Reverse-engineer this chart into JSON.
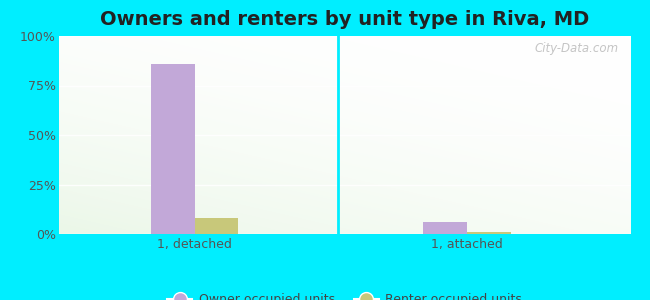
{
  "title": "Owners and renters by unit type in Riva, MD",
  "groups": [
    "1, detached",
    "1, attached"
  ],
  "series": [
    {
      "label": "Owner occupied units",
      "values": [
        86,
        6
      ],
      "color": "#c2a8d8"
    },
    {
      "label": "Renter occupied units",
      "values": [
        8,
        1
      ],
      "color": "#c8c87a"
    }
  ],
  "ylim": [
    0,
    100
  ],
  "yticks": [
    0,
    25,
    50,
    75,
    100
  ],
  "ytick_labels": [
    "0%",
    "25%",
    "50%",
    "75%",
    "100%"
  ],
  "bg_outer": "#00eeff",
  "bar_width": 0.32,
  "group_positions": [
    1.0,
    3.0
  ],
  "xlim": [
    0.0,
    4.2
  ],
  "title_fontsize": 14,
  "watermark": "City-Data.com",
  "grid_color": "#e0e8d8",
  "divider_x": 2.05
}
